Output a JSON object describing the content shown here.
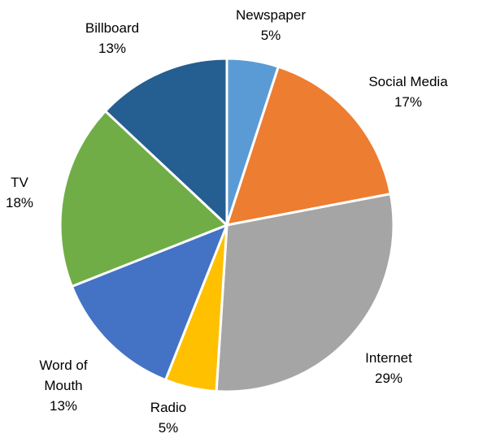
{
  "chart_data": {
    "type": "pie",
    "title": "",
    "slices": [
      {
        "name": "Newspaper",
        "value": 5,
        "label": "5%",
        "color": "#5B9BD5"
      },
      {
        "name": "Social Media",
        "value": 17,
        "label": "17%",
        "color": "#ED7D31"
      },
      {
        "name": "Internet",
        "value": 29,
        "label": "29%",
        "color": "#A5A5A5"
      },
      {
        "name": "Radio",
        "value": 5,
        "label": "5%",
        "color": "#FFC000"
      },
      {
        "name": "Word of Mouth",
        "display_name": [
          "Word of",
          "Mouth"
        ],
        "value": 13,
        "label": "13%",
        "color": "#4472C4"
      },
      {
        "name": "TV",
        "value": 18,
        "label": "18%",
        "color": "#70AD47"
      },
      {
        "name": "Billboard",
        "value": 13,
        "label": "13%",
        "color": "#255E91"
      }
    ]
  }
}
